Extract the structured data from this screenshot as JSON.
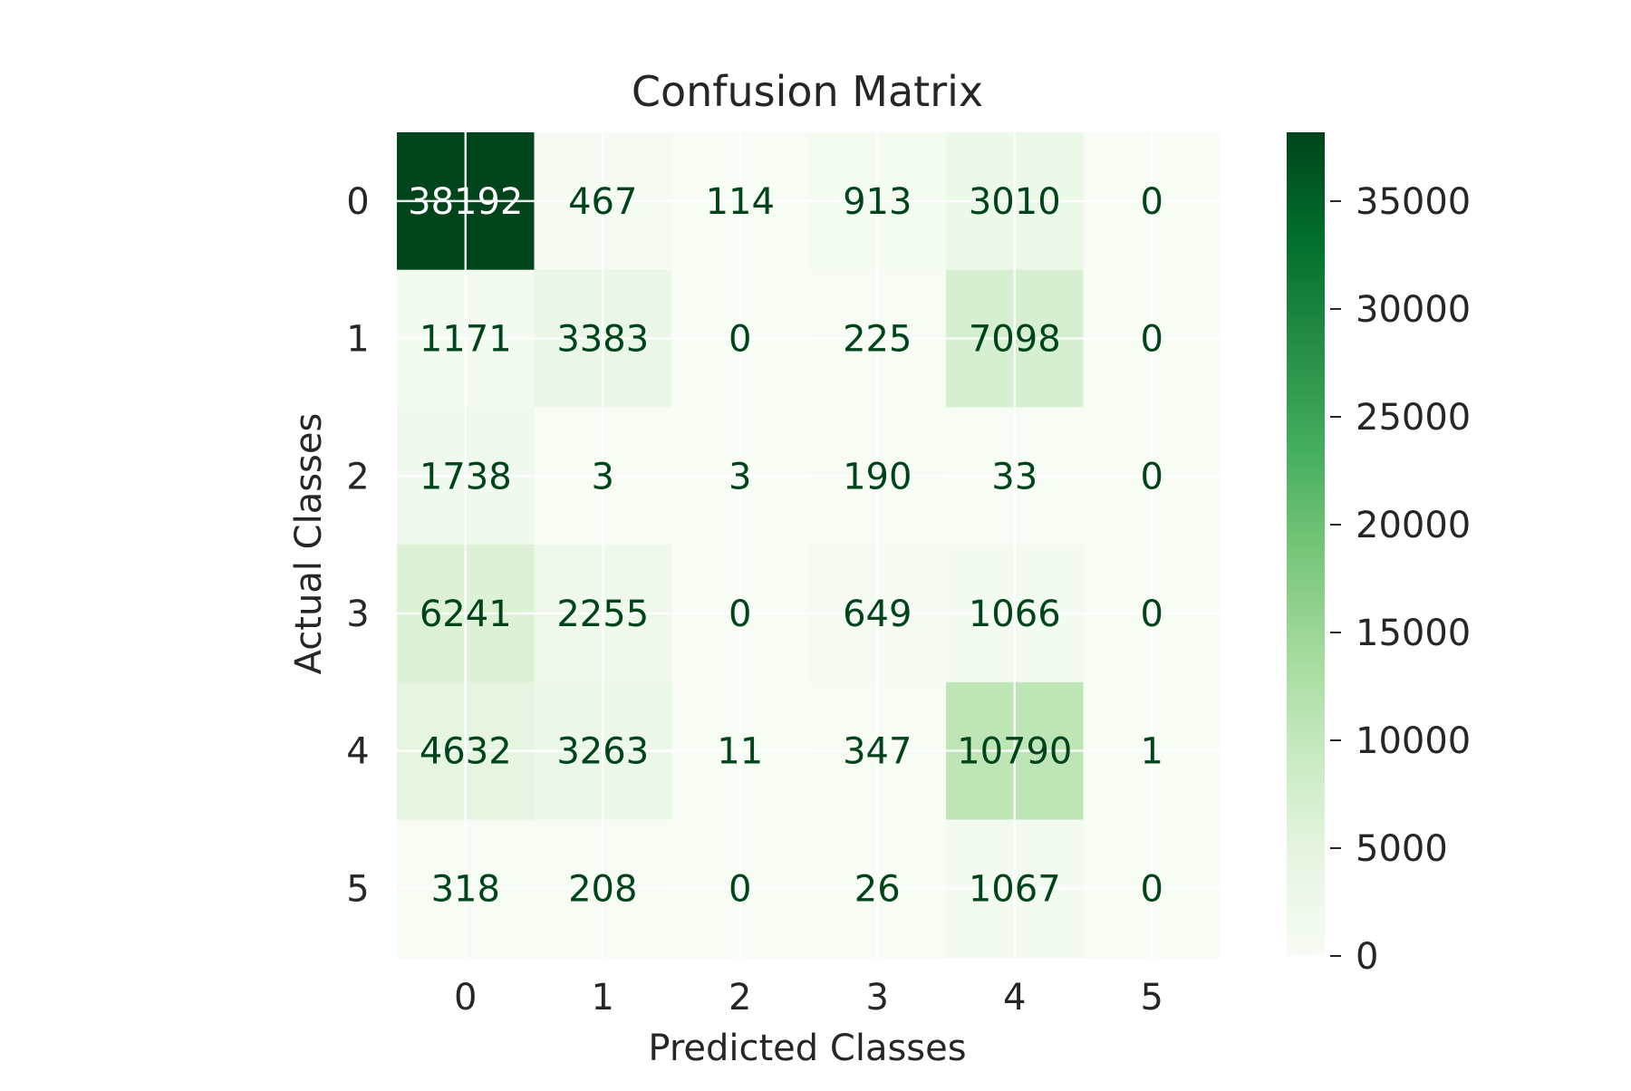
{
  "chart_data": {
    "type": "heatmap",
    "title": "Confusion Matrix",
    "xlabel": "Predicted Classes",
    "ylabel": "Actual Classes",
    "x_categories": [
      "0",
      "1",
      "2",
      "3",
      "4",
      "5"
    ],
    "y_categories": [
      "0",
      "1",
      "2",
      "3",
      "4",
      "5"
    ],
    "matrix": [
      [
        38192,
        467,
        114,
        913,
        3010,
        0
      ],
      [
        1171,
        3383,
        0,
        225,
        7098,
        0
      ],
      [
        1738,
        3,
        3,
        190,
        33,
        0
      ],
      [
        6241,
        2255,
        0,
        649,
        1066,
        0
      ],
      [
        4632,
        3263,
        11,
        347,
        10790,
        1
      ],
      [
        318,
        208,
        0,
        26,
        1067,
        0
      ]
    ],
    "colorbar": {
      "min": 0,
      "max": 38192,
      "ticks": [
        0,
        5000,
        10000,
        15000,
        20000,
        25000,
        30000,
        35000
      ],
      "colormap": [
        "#f7fcf5",
        "#e5f5e0",
        "#c7e9c0",
        "#a1d99b",
        "#74c476",
        "#41ab5d",
        "#238b45",
        "#006d2c",
        "#00441b"
      ]
    },
    "grid": true
  }
}
